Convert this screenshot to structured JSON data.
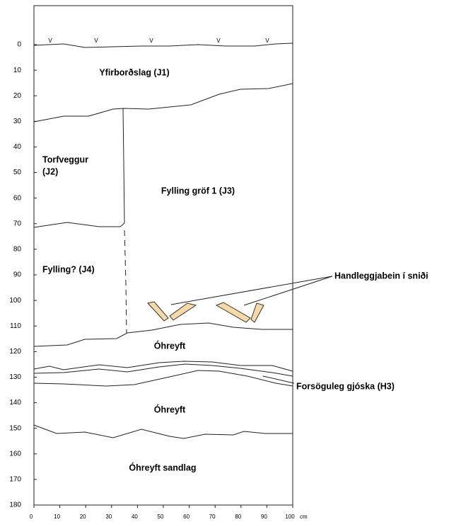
{
  "y_axis": {
    "ticks": [
      0,
      10,
      20,
      30,
      40,
      50,
      60,
      70,
      80,
      90,
      100,
      110,
      120,
      130,
      140,
      150,
      160,
      170,
      180
    ]
  },
  "x_axis": {
    "ticks": [
      0,
      10,
      20,
      30,
      40,
      50,
      60,
      70,
      80,
      90,
      100
    ],
    "unit": "cm"
  },
  "vegetation_marks": [
    "v",
    "v",
    "v",
    "v",
    "v"
  ],
  "layers": [
    {
      "lines": [
        "Yfirborðslag (J1)"
      ]
    },
    {
      "lines": [
        "Torfveggur",
        "(J2)"
      ]
    },
    {
      "lines": [
        "Fylling gröf 1 (J3)"
      ]
    },
    {
      "lines": [
        "Fylling? (J4)"
      ]
    },
    {
      "lines": [
        "Óhreyft"
      ]
    },
    {
      "lines": [
        "Óhreyft"
      ]
    },
    {
      "lines": [
        "Óhreyft sandlag"
      ]
    }
  ],
  "annotations": [
    {
      "text": "Handleggjabein í sniði"
    },
    {
      "text": "Forsöguleg gjóska (H3)"
    }
  ]
}
